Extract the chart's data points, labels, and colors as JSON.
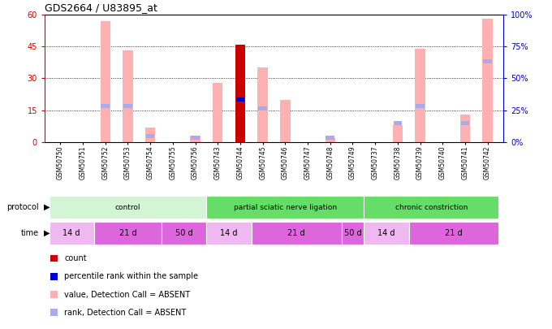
{
  "title": "GDS2664 / U83895_at",
  "samples": [
    "GSM50750",
    "GSM50751",
    "GSM50752",
    "GSM50753",
    "GSM50754",
    "GSM50755",
    "GSM50756",
    "GSM50743",
    "GSM50744",
    "GSM50745",
    "GSM50746",
    "GSM50747",
    "GSM50748",
    "GSM50749",
    "GSM50737",
    "GSM50738",
    "GSM50739",
    "GSM50740",
    "GSM50741",
    "GSM50742"
  ],
  "pink_bar_heights": [
    0,
    0,
    57,
    43,
    7,
    0,
    3,
    28,
    0,
    35,
    20,
    0,
    2,
    0,
    0,
    8,
    44,
    0,
    13,
    58
  ],
  "blue_rank_values": [
    0,
    0,
    17,
    17,
    3,
    0,
    2,
    0,
    20,
    16,
    0,
    0,
    2,
    0,
    0,
    9,
    17,
    0,
    9,
    38
  ],
  "dark_red_bar_heights": [
    0,
    0,
    0,
    0,
    0,
    0,
    0,
    0,
    46,
    0,
    0,
    0,
    0,
    0,
    0,
    0,
    0,
    0,
    0,
    0
  ],
  "blue_dot_values": [
    0,
    0,
    0,
    0,
    0,
    0,
    0,
    0,
    20,
    0,
    0,
    0,
    0,
    0,
    0,
    0,
    0,
    0,
    0,
    0
  ],
  "ylim_left": [
    0,
    60
  ],
  "ylim_right": [
    0,
    100
  ],
  "yticks_left": [
    0,
    15,
    30,
    45,
    60
  ],
  "yticks_right": [
    0,
    25,
    50,
    75,
    100
  ],
  "protocol_groups": [
    {
      "label": "control",
      "start": 0,
      "end": 7,
      "color": "#d4f5d4"
    },
    {
      "label": "partial sciatic nerve ligation",
      "start": 7,
      "end": 14,
      "color": "#66dd66"
    },
    {
      "label": "chronic constriction",
      "start": 14,
      "end": 20,
      "color": "#66dd66"
    }
  ],
  "time_groups": [
    {
      "label": "14 d",
      "start": 0,
      "end": 2,
      "color": "#f0b8f0"
    },
    {
      "label": "21 d",
      "start": 2,
      "end": 5,
      "color": "#dd66dd"
    },
    {
      "label": "50 d",
      "start": 5,
      "end": 7,
      "color": "#dd66dd"
    },
    {
      "label": "14 d",
      "start": 7,
      "end": 9,
      "color": "#f0b8f0"
    },
    {
      "label": "21 d",
      "start": 9,
      "end": 13,
      "color": "#dd66dd"
    },
    {
      "label": "50 d",
      "start": 13,
      "end": 14,
      "color": "#dd66dd"
    },
    {
      "label": "14 d",
      "start": 14,
      "end": 16,
      "color": "#f0b8f0"
    },
    {
      "label": "21 d",
      "start": 16,
      "end": 20,
      "color": "#dd66dd"
    }
  ],
  "bar_width": 0.45,
  "pink_color": "#ffb0b0",
  "blue_rank_color": "#aaaaee",
  "dark_red_color": "#cc0000",
  "blue_dot_color": "#0000cc",
  "bg_color": "#ffffff",
  "left_axis_color": "#cc0000",
  "right_axis_color": "#0000cc",
  "legend_items": [
    {
      "color": "#cc0000",
      "label": "count"
    },
    {
      "color": "#0000cc",
      "label": "percentile rank within the sample"
    },
    {
      "color": "#ffb0b0",
      "label": "value, Detection Call = ABSENT"
    },
    {
      "color": "#aaaaee",
      "label": "rank, Detection Call = ABSENT"
    }
  ]
}
